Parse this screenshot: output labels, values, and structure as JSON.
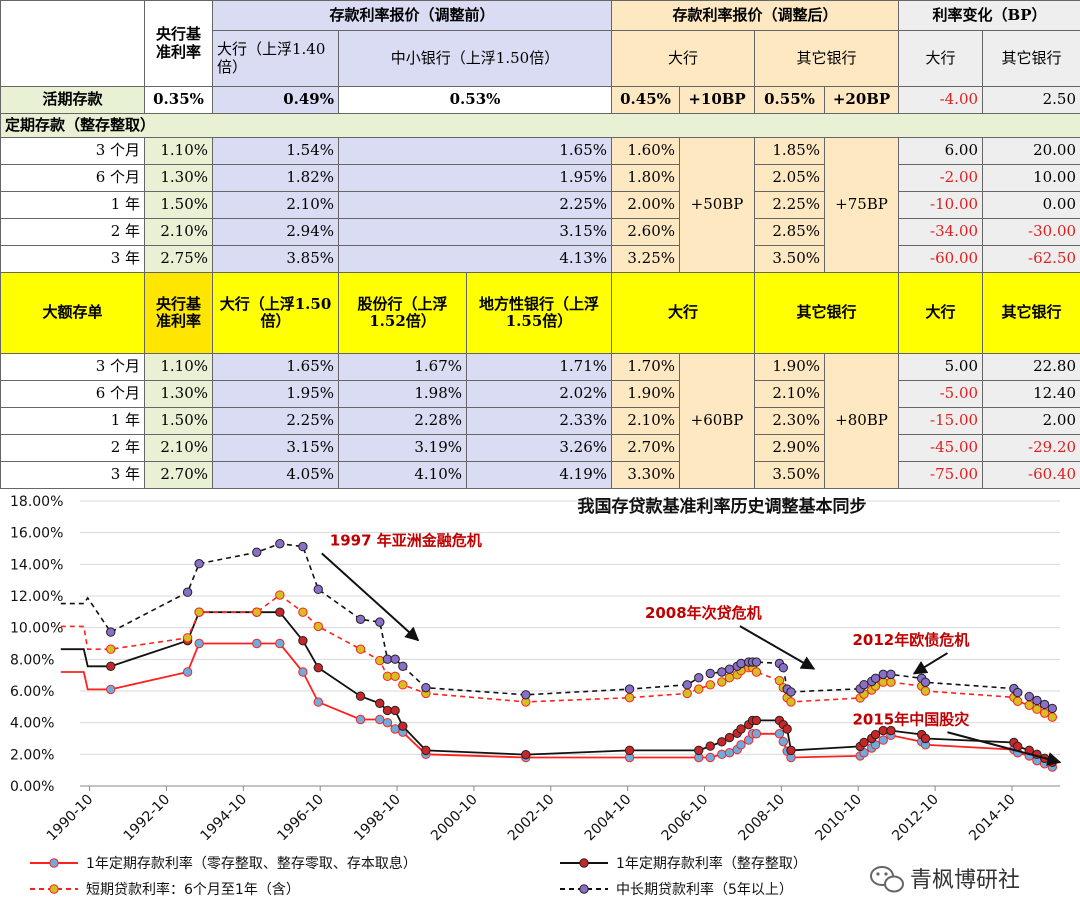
{
  "table": {
    "header": {
      "central": "央行基准利率",
      "pre_group": "存款利率报价（调整前）",
      "post_group": "存款利率报价（调整后）",
      "change_group": "利率变化（BP）",
      "pre_big": "大行（上浮1.40倍）",
      "pre_small": "中小银行（上浮1.50倍）",
      "post_big": "大行",
      "post_other": "其它银行",
      "chg_big": "大行",
      "chg_other": "其它银行"
    },
    "demand": {
      "label": "活期存款",
      "central": "0.35%",
      "pre_big": "0.49%",
      "pre_small": "0.53%",
      "post_big": "0.45%",
      "post_big_adj": "+10BP",
      "post_other": "0.55%",
      "post_other_adj": "+20BP",
      "chg_big": "-4.00",
      "chg_other": "2.50"
    },
    "fixed_title": "定期存款（整存整取）",
    "fixed_big_adj": "+50BP",
    "fixed_other_adj": "+75BP",
    "fixed_rows": [
      {
        "term": "3 个月",
        "central": "1.10%",
        "pre_big": "1.54%",
        "pre_small": "1.65%",
        "post_big": "1.60%",
        "post_other": "1.85%",
        "chg_big": "6.00",
        "chg_other": "20.00"
      },
      {
        "term": "6 个月",
        "central": "1.30%",
        "pre_big": "1.82%",
        "pre_small": "1.95%",
        "post_big": "1.80%",
        "post_other": "2.05%",
        "chg_big": "-2.00",
        "chg_other": "10.00"
      },
      {
        "term": "1 年",
        "central": "1.50%",
        "pre_big": "2.10%",
        "pre_small": "2.25%",
        "post_big": "2.00%",
        "post_other": "2.25%",
        "chg_big": "-10.00",
        "chg_other": "0.00"
      },
      {
        "term": "2 年",
        "central": "2.10%",
        "pre_big": "2.94%",
        "pre_small": "3.15%",
        "post_big": "2.60%",
        "post_other": "2.85%",
        "chg_big": "-34.00",
        "chg_other": "-30.00"
      },
      {
        "term": "3 年",
        "central": "2.75%",
        "pre_big": "3.85%",
        "pre_small": "4.13%",
        "post_big": "3.25%",
        "post_other": "3.50%",
        "chg_big": "-60.00",
        "chg_other": "-62.50"
      }
    ],
    "cd_header": {
      "label": "大额存单",
      "central": "央行基准利率",
      "big": "大行（上浮1.50倍）",
      "joint": "股份行（上浮1.52倍）",
      "local": "地方性银行（上浮1.55倍）",
      "post_big": "大行",
      "post_other": "其它银行",
      "chg_big": "大行",
      "chg_other": "其它银行"
    },
    "cd_big_adj": "+60BP",
    "cd_other_adj": "+80BP",
    "cd_rows": [
      {
        "term": "3 个月",
        "central": "1.10%",
        "big": "1.65%",
        "joint": "1.67%",
        "local": "1.71%",
        "post_big": "1.70%",
        "post_other": "1.90%",
        "chg_big": "5.00",
        "chg_other": "22.80"
      },
      {
        "term": "6 个月",
        "central": "1.30%",
        "big": "1.95%",
        "joint": "1.98%",
        "local": "2.02%",
        "post_big": "1.90%",
        "post_other": "2.10%",
        "chg_big": "-5.00",
        "chg_other": "12.40"
      },
      {
        "term": "1 年",
        "central": "1.50%",
        "big": "2.25%",
        "joint": "2.28%",
        "local": "2.33%",
        "post_big": "2.10%",
        "post_other": "2.30%",
        "chg_big": "-15.00",
        "chg_other": "2.00"
      },
      {
        "term": "2 年",
        "central": "2.10%",
        "big": "3.15%",
        "joint": "3.19%",
        "local": "3.26%",
        "post_big": "2.70%",
        "post_other": "2.90%",
        "chg_big": "-45.00",
        "chg_other": "-29.20"
      },
      {
        "term": "3 年",
        "central": "2.70%",
        "big": "4.05%",
        "joint": "4.10%",
        "local": "4.19%",
        "post_big": "3.30%",
        "post_other": "3.50%",
        "chg_big": "-75.00",
        "chg_other": "-60.40"
      }
    ]
  },
  "chart_data": {
    "type": "line",
    "title": "我国存贷款基准利率历史调整基本同步",
    "ylim": [
      0,
      18
    ],
    "yticks": [
      "0.00%",
      "2.00%",
      "4.00%",
      "6.00%",
      "8.00%",
      "10.00%",
      "12.00%",
      "14.00%",
      "16.00%",
      "18.00%"
    ],
    "xlim": [
      1990.5,
      2016.0
    ],
    "xticks": [
      "1990-10",
      "1992-10",
      "1994-10",
      "1996-10",
      "1998-10",
      "2000-10",
      "2002-10",
      "2004-10",
      "2006-10",
      "2008-10",
      "2010-10",
      "2012-10",
      "2014-10"
    ],
    "series": [
      {
        "name": "1年定期存款利率（零存整取、整存零取、存本取息）",
        "color": "#ff2020",
        "dash": false,
        "marker": "#6aaee0",
        "x": [
          1990.0,
          1990.6,
          1990.7,
          1991.3,
          1993.3,
          1993.6,
          1995.1,
          1995.7,
          1996.3,
          1996.7,
          1997.8,
          1998.3,
          1998.5,
          1998.7,
          1998.9,
          1999.5,
          2002.1,
          2004.8,
          2006.6,
          2006.9,
          2007.2,
          2007.4,
          2007.6,
          2007.7,
          2007.9,
          2008.0,
          2008.1,
          2008.7,
          2008.8,
          2008.9,
          2009.0,
          2010.8,
          2010.9,
          2011.1,
          2011.2,
          2011.4,
          2011.6,
          2012.4,
          2012.5,
          2014.8,
          2014.9,
          2015.2,
          2015.4,
          2015.6,
          2015.8
        ],
        "y": [
          7.2,
          7.2,
          6.1,
          6.1,
          7.2,
          9.0,
          9.0,
          9.0,
          7.2,
          5.3,
          4.2,
          4.2,
          4.0,
          3.6,
          3.4,
          2.0,
          1.8,
          1.8,
          1.8,
          1.8,
          2.0,
          2.1,
          2.3,
          2.6,
          2.9,
          3.3,
          3.3,
          3.3,
          2.8,
          2.2,
          1.8,
          1.9,
          2.1,
          2.4,
          2.6,
          2.9,
          3.2,
          2.8,
          2.6,
          2.3,
          2.1,
          1.9,
          1.6,
          1.4,
          1.2
        ]
      },
      {
        "name": "1年定期存款利率（整存整取）",
        "color": "#111111",
        "dash": false,
        "marker": "#c8272a",
        "x": [
          1990.0,
          1990.6,
          1990.7,
          1991.3,
          1993.3,
          1993.6,
          1995.1,
          1995.7,
          1996.3,
          1996.7,
          1997.8,
          1998.3,
          1998.5,
          1998.7,
          1998.9,
          1999.5,
          2002.1,
          2004.8,
          2006.6,
          2006.9,
          2007.2,
          2007.4,
          2007.6,
          2007.7,
          2007.9,
          2008.0,
          2008.1,
          2008.7,
          2008.8,
          2008.9,
          2009.0,
          2010.8,
          2010.9,
          2011.1,
          2011.2,
          2011.4,
          2011.6,
          2012.4,
          2012.5,
          2014.8,
          2014.9,
          2015.2,
          2015.4,
          2015.6,
          2015.8
        ],
        "y": [
          8.64,
          8.64,
          7.56,
          7.56,
          9.18,
          10.98,
          10.98,
          10.98,
          9.18,
          7.47,
          5.67,
          5.22,
          4.77,
          4.77,
          3.78,
          2.25,
          1.98,
          2.25,
          2.25,
          2.52,
          2.79,
          3.06,
          3.33,
          3.6,
          3.87,
          4.14,
          4.14,
          4.14,
          3.87,
          3.6,
          2.25,
          2.5,
          2.75,
          3.0,
          3.25,
          3.5,
          3.5,
          3.25,
          3.0,
          2.75,
          2.5,
          2.25,
          2.0,
          1.75,
          1.5
        ]
      },
      {
        "name": "短期贷款利率：6个月至1年（含）",
        "color": "#ff2020",
        "dash": true,
        "marker": "#d4c020",
        "x": [
          1990.0,
          1990.6,
          1990.7,
          1991.3,
          1993.3,
          1993.6,
          1995.1,
          1995.7,
          1996.3,
          1996.7,
          1997.8,
          1998.3,
          1998.5,
          1998.7,
          1998.9,
          1999.5,
          2002.1,
          2004.8,
          2006.3,
          2006.6,
          2006.9,
          2007.2,
          2007.4,
          2007.6,
          2007.7,
          2007.9,
          2008.0,
          2008.1,
          2008.7,
          2008.8,
          2008.9,
          2009.0,
          2010.8,
          2010.9,
          2011.1,
          2011.2,
          2011.4,
          2011.6,
          2012.4,
          2012.5,
          2014.8,
          2014.9,
          2015.2,
          2015.4,
          2015.6,
          2015.8
        ],
        "y": [
          10.08,
          10.08,
          8.64,
          8.64,
          9.36,
          10.98,
          10.98,
          12.06,
          10.98,
          10.08,
          8.64,
          7.92,
          6.93,
          6.93,
          6.39,
          5.85,
          5.31,
          5.58,
          5.85,
          6.12,
          6.39,
          6.57,
          6.84,
          7.02,
          7.29,
          7.47,
          7.47,
          7.2,
          6.66,
          6.21,
          5.58,
          5.31,
          5.56,
          5.81,
          6.06,
          6.31,
          6.56,
          6.56,
          6.31,
          6.0,
          5.6,
          5.35,
          5.1,
          4.85,
          4.6,
          4.35
        ]
      },
      {
        "name": "中长期贷款利率（5年以上）",
        "color": "#111111",
        "dash": true,
        "marker": "#8a6fc8",
        "x": [
          1990.0,
          1990.6,
          1990.7,
          1991.3,
          1993.3,
          1993.6,
          1995.1,
          1995.7,
          1996.3,
          1996.7,
          1997.8,
          1998.3,
          1998.5,
          1998.7,
          1998.9,
          1999.5,
          2002.1,
          2004.8,
          2006.3,
          2006.6,
          2006.9,
          2007.2,
          2007.4,
          2007.6,
          2007.7,
          2007.9,
          2008.0,
          2008.1,
          2008.7,
          2008.8,
          2008.9,
          2009.0,
          2010.8,
          2010.9,
          2011.1,
          2011.2,
          2011.4,
          2011.6,
          2012.4,
          2012.5,
          2014.8,
          2014.9,
          2015.2,
          2015.4,
          2015.6,
          2015.8
        ],
        "y": [
          11.52,
          11.52,
          11.88,
          9.72,
          12.24,
          14.04,
          14.76,
          15.3,
          15.12,
          12.42,
          10.53,
          10.35,
          8.01,
          8.01,
          7.56,
          6.21,
          5.76,
          6.12,
          6.39,
          6.84,
          7.11,
          7.2,
          7.38,
          7.56,
          7.74,
          7.83,
          7.83,
          7.83,
          7.74,
          7.47,
          6.12,
          5.94,
          6.14,
          6.4,
          6.6,
          6.8,
          7.05,
          7.05,
          6.8,
          6.55,
          6.15,
          5.9,
          5.65,
          5.4,
          5.15,
          4.9
        ]
      }
    ],
    "annotations": [
      {
        "text": "1997 年亚洲金融危机",
        "x": 1997.0,
        "y": 15.2,
        "arrow_to": [
          1999.3,
          9.2
        ]
      },
      {
        "text": "2008年次贷危机",
        "x": 2005.2,
        "y": 10.6,
        "arrow_to": [
          2009.6,
          7.4
        ]
      },
      {
        "text": "2012年欧债危机",
        "x": 2010.6,
        "y": 8.9,
        "arrow_to": [
          2012.2,
          7.1
        ]
      },
      {
        "text": "2015年中国股灾",
        "x": 2010.6,
        "y": 3.9,
        "arrow_to": [
          2016.4,
          1.5
        ]
      }
    ],
    "legend": [
      {
        "name": "1年定期存款利率（零存整取、整存零取、存本取息）"
      },
      {
        "name": "1年定期存款利率（整存整取）"
      },
      {
        "name": "短期贷款利率：6个月至1年（含）"
      },
      {
        "name": "中长期贷款利率（5年以上）"
      }
    ],
    "watermark": "青枫博研社"
  }
}
